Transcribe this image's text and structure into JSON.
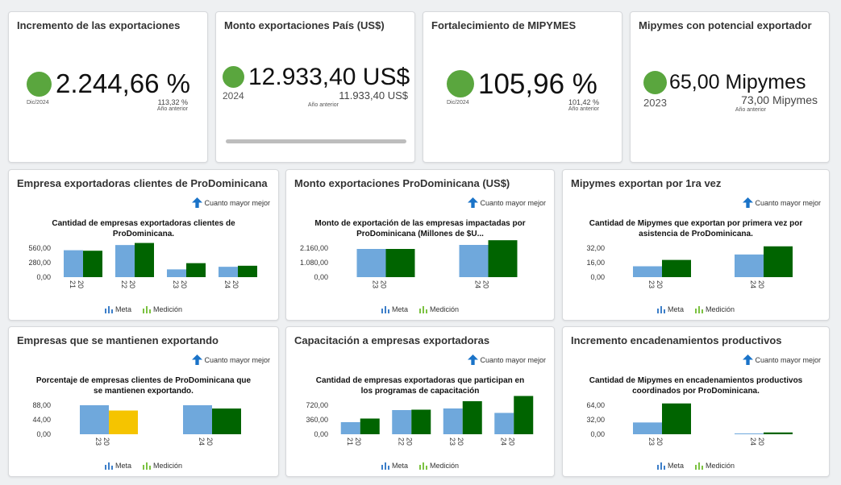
{
  "kpis": [
    {
      "title": "Incremento de las exportaciones",
      "value": "2.244,66 %",
      "period": "Dic/2024",
      "prev_value": "113,32 %",
      "prev_label": "Año anterior",
      "status_color": "#5aa63e"
    },
    {
      "title": "Monto exportaciones País (US$)",
      "value": "12.933,40 US$",
      "period": "2024",
      "prev_value": "11.933,40 US$",
      "prev_label": "Año anterior",
      "status_color": "#5aa63e"
    },
    {
      "title": "Fortalecimiento de MIPYMES",
      "value": "105,96 %",
      "period": "Dic/2024",
      "prev_value": "101,42 %",
      "prev_label": "Año anterior",
      "status_color": "#5aa63e"
    },
    {
      "title": "Mipymes con potencial exportador",
      "value": "65,00 Mipymes",
      "period": "2023",
      "prev_value": "73,00 Mipymes",
      "prev_label": "Año anterior",
      "status_color": "#5aa63e"
    }
  ],
  "mejor_label": "Cuanto mayor mejor",
  "legend": {
    "meta": "Meta",
    "medicion": "Medición"
  },
  "colors": {
    "meta": "#6fa8dc",
    "medicion": "#006400",
    "medicion_warn": "#f5c400",
    "legend_meta": "#3d7fc9",
    "legend_medicion": "#7cc242",
    "arrow": "#1a73c8"
  },
  "charts": [
    {
      "panel_title": "Empresa exportadoras clientes de ProDominicana",
      "chart_title": "Cantidad de empresas exportadoras clientes de ProDominicana.",
      "chart_data": {
        "type": "bar",
        "categories": [
          "2021",
          "2022",
          "2023",
          "2024"
        ],
        "tick_labels": [
          "560,00",
          "280,00",
          "0,00"
        ],
        "ylim": [
          0,
          840
        ],
        "series": [
          {
            "name": "Meta",
            "values": [
              520,
              620,
              150,
              200
            ]
          },
          {
            "name": "Medición",
            "values": [
              510,
              660,
              270,
              220
            ]
          }
        ]
      }
    },
    {
      "panel_title": "Monto exportaciones ProDominicana (US$)",
      "chart_title": "Monto de exportación de las empresas impactadas por ProDominicana (Millones de $U...",
      "chart_data": {
        "type": "bar",
        "categories": [
          "2023",
          "2024"
        ],
        "tick_labels": [
          "2.160,00",
          "1.080,00",
          "0,00"
        ],
        "ylim": [
          0,
          3240
        ],
        "series": [
          {
            "name": "Meta",
            "values": [
              2100,
              2400
            ]
          },
          {
            "name": "Medición",
            "values": [
              2100,
              2750
            ]
          }
        ]
      }
    },
    {
      "panel_title": "Mipymes exportan por 1ra vez",
      "chart_title": "Cantidad de Mipymes que exportan por primera vez por asistencia de ProDominicana.",
      "chart_data": {
        "type": "bar",
        "categories": [
          "2023",
          "2024"
        ],
        "tick_labels": [
          "32,00",
          "16,00",
          "0,00"
        ],
        "ylim": [
          0,
          48
        ],
        "series": [
          {
            "name": "Meta",
            "values": [
              12,
              25
            ]
          },
          {
            "name": "Medición",
            "values": [
              19,
              34
            ]
          }
        ]
      }
    },
    {
      "panel_title": "Empresas que se mantienen exportando",
      "chart_title": "Porcentaje de empresas clientes de ProDominicana que se mantienen exportando.",
      "chart_data": {
        "type": "bar",
        "categories": [
          "2023",
          "2024"
        ],
        "tick_labels": [
          "88,00",
          "44,00",
          "0,00"
        ],
        "ylim": [
          0,
          132
        ],
        "series": [
          {
            "name": "Meta",
            "values": [
              88,
              88
            ]
          },
          {
            "name": "Medición",
            "values": [
              72,
              78
            ]
          }
        ],
        "warn_points": [
          0
        ]
      }
    },
    {
      "panel_title": "Capacitación a empresas exportadoras",
      "chart_title": "Cantidad de empresas exportadoras que participan en los programas de capacitación",
      "chart_data": {
        "type": "bar",
        "categories": [
          "2021",
          "2022",
          "2023",
          "2024"
        ],
        "tick_labels": [
          "720,00",
          "360,00",
          "0,00"
        ],
        "ylim": [
          0,
          1080
        ],
        "series": [
          {
            "name": "Meta",
            "values": [
              300,
              600,
              640,
              530
            ]
          },
          {
            "name": "Medición",
            "values": [
              390,
              610,
              820,
              950
            ]
          }
        ]
      }
    },
    {
      "panel_title": "Incremento encadenamientos productivos",
      "chart_title": "Cantidad de Mipymes en encadenamientos productivos coordinados por ProDominicana.",
      "chart_data": {
        "type": "bar",
        "categories": [
          "2023",
          "2024"
        ],
        "tick_labels": [
          "64,00",
          "32,00",
          "0,00"
        ],
        "ylim": [
          0,
          96
        ],
        "series": [
          {
            "name": "Meta",
            "values": [
              26,
              1
            ]
          },
          {
            "name": "Medición",
            "values": [
              68,
              4
            ]
          }
        ]
      }
    }
  ]
}
